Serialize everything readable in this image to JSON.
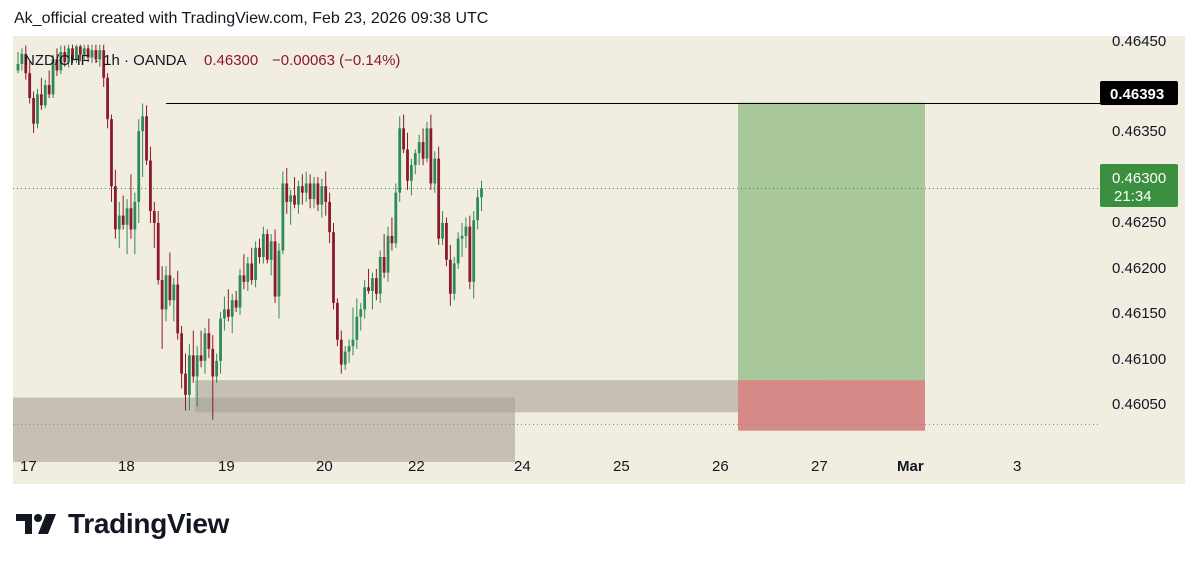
{
  "header": {
    "caption": "Ak_official created with TradingView.com, Feb 23, 2026 09:38 UTC"
  },
  "legend": {
    "symbol": "NZD/CHF · 1h · OANDA",
    "price": "0.46300",
    "change": "−0.00063 (−0.14%)"
  },
  "price_axis": {
    "labels": [
      "0.46450",
      "0.46350",
      "0.46250",
      "0.46200",
      "0.46150",
      "0.46100",
      "0.46050"
    ]
  },
  "price_tags": {
    "level": "0.46393",
    "last_price": "0.46300",
    "countdown": "21:34"
  },
  "time_axis": {
    "labels": [
      "17",
      "18",
      "19",
      "20",
      "22",
      "24",
      "25",
      "26",
      "27",
      "Mar",
      "3"
    ]
  },
  "footer": {
    "brand": "TradingView"
  },
  "colors": {
    "background": "#f2ede1",
    "up": "#2e8b57",
    "down": "#8b1a2a",
    "zone": "#a9a397",
    "target": "#a8c79a",
    "stop": "#d58a88",
    "last_price_tag": "#3b8f3e",
    "level_tag": "#000000",
    "axis_text": "#131722"
  },
  "chart_data": {
    "type": "candlestick",
    "symbol": "NZD/CHF",
    "interval": "1h",
    "exchange": "OANDA",
    "last_price": 0.463,
    "change": -0.00063,
    "change_percent": -0.14,
    "ylim": [
      0.46015,
      0.4646
    ],
    "horizontal_level": 0.46393,
    "price_line": 0.463,
    "support_line": 0.46043,
    "zones": [
      {
        "from": "Feb 17",
        "to": "Feb 24",
        "low": 0.46002,
        "high": 0.46072
      },
      {
        "from": "Feb 18 20:00",
        "to": "Feb 27",
        "low": 0.46056,
        "high": 0.46091
      }
    ],
    "long_position": {
      "from": "Feb 26 05:00",
      "to": "Feb 28 09:00",
      "entry": 0.46091,
      "target": 0.46393,
      "stop": 0.46036
    },
    "candles": [
      [
        0.46428,
        0.46448,
        0.46425,
        0.46435
      ],
      [
        0.46435,
        0.46452,
        0.46428,
        0.46446
      ],
      [
        0.46446,
        0.46455,
        0.46418,
        0.46425
      ],
      [
        0.46425,
        0.46438,
        0.46392,
        0.46398
      ],
      [
        0.46398,
        0.46405,
        0.4636,
        0.4637
      ],
      [
        0.4637,
        0.46408,
        0.46365,
        0.46402
      ],
      [
        0.46402,
        0.4642,
        0.46385,
        0.4639
      ],
      [
        0.4639,
        0.46418,
        0.46387,
        0.46412
      ],
      [
        0.46412,
        0.46428,
        0.46398,
        0.46402
      ],
      [
        0.46402,
        0.46445,
        0.46398,
        0.4644
      ],
      [
        0.4644,
        0.46452,
        0.46422,
        0.46428
      ],
      [
        0.46428,
        0.46455,
        0.46424,
        0.46448
      ],
      [
        0.46448,
        0.46455,
        0.46432,
        0.46437
      ],
      [
        0.46437,
        0.46456,
        0.46431,
        0.46452
      ],
      [
        0.46452,
        0.46456,
        0.46436,
        0.4644
      ],
      [
        0.4644,
        0.46456,
        0.46436,
        0.46454
      ],
      [
        0.46454,
        0.46456,
        0.46438,
        0.46445
      ],
      [
        0.46445,
        0.46456,
        0.4644,
        0.46452
      ],
      [
        0.46452,
        0.46456,
        0.46437,
        0.46442
      ],
      [
        0.46442,
        0.46456,
        0.46436,
        0.4645
      ],
      [
        0.4645,
        0.46456,
        0.46436,
        0.4644
      ],
      [
        0.4644,
        0.46456,
        0.46432,
        0.4645
      ],
      [
        0.4645,
        0.46456,
        0.4641,
        0.4642
      ],
      [
        0.4642,
        0.46425,
        0.46365,
        0.46375
      ],
      [
        0.46375,
        0.4638,
        0.46285,
        0.46302
      ],
      [
        0.46302,
        0.4632,
        0.46245,
        0.46255
      ],
      [
        0.46255,
        0.46285,
        0.46235,
        0.4627
      ],
      [
        0.4627,
        0.46292,
        0.46255,
        0.4626
      ],
      [
        0.4626,
        0.46288,
        0.46228,
        0.46278
      ],
      [
        0.46278,
        0.46315,
        0.46245,
        0.46255
      ],
      [
        0.46255,
        0.46295,
        0.46228,
        0.46285
      ],
      [
        0.46285,
        0.46375,
        0.46262,
        0.46362
      ],
      [
        0.46362,
        0.46392,
        0.46312,
        0.46378
      ],
      [
        0.46378,
        0.4639,
        0.46325,
        0.4633
      ],
      [
        0.4633,
        0.46345,
        0.46262,
        0.46275
      ],
      [
        0.46275,
        0.46285,
        0.46235,
        0.46262
      ],
      [
        0.46262,
        0.46275,
        0.46195,
        0.462
      ],
      [
        0.462,
        0.46215,
        0.46125,
        0.46168
      ],
      [
        0.46168,
        0.46215,
        0.46155,
        0.46205
      ],
      [
        0.46205,
        0.4623,
        0.46172,
        0.46178
      ],
      [
        0.46178,
        0.46202,
        0.46155,
        0.46195
      ],
      [
        0.46195,
        0.4621,
        0.46135,
        0.46142
      ],
      [
        0.46142,
        0.4615,
        0.46082,
        0.46098
      ],
      [
        0.46098,
        0.4612,
        0.46058,
        0.46075
      ],
      [
        0.46075,
        0.4613,
        0.46058,
        0.46118
      ],
      [
        0.46118,
        0.46145,
        0.46088,
        0.46095
      ],
      [
        0.46095,
        0.46128,
        0.46062,
        0.46118
      ],
      [
        0.46118,
        0.46145,
        0.46105,
        0.46112
      ],
      [
        0.46112,
        0.46148,
        0.46098,
        0.46142
      ],
      [
        0.46142,
        0.46158,
        0.46115,
        0.46125
      ],
      [
        0.46125,
        0.4614,
        0.46048,
        0.46095
      ],
      [
        0.46095,
        0.4612,
        0.46088,
        0.46112
      ],
      [
        0.46112,
        0.46165,
        0.46098,
        0.46158
      ],
      [
        0.46158,
        0.46182,
        0.46145,
        0.46168
      ],
      [
        0.46168,
        0.4619,
        0.46155,
        0.4616
      ],
      [
        0.4616,
        0.46185,
        0.46142,
        0.46178
      ],
      [
        0.46178,
        0.46188,
        0.46165,
        0.4617
      ],
      [
        0.4617,
        0.46212,
        0.46162,
        0.46205
      ],
      [
        0.46205,
        0.46228,
        0.4619,
        0.46198
      ],
      [
        0.46198,
        0.46225,
        0.46188,
        0.46218
      ],
      [
        0.46218,
        0.46235,
        0.46195,
        0.462
      ],
      [
        0.462,
        0.46242,
        0.46192,
        0.46235
      ],
      [
        0.46235,
        0.46245,
        0.46218,
        0.46225
      ],
      [
        0.46225,
        0.46258,
        0.46218,
        0.4625
      ],
      [
        0.4625,
        0.46255,
        0.46218,
        0.46222
      ],
      [
        0.46222,
        0.4625,
        0.46205,
        0.46242
      ],
      [
        0.46242,
        0.46255,
        0.46175,
        0.46182
      ],
      [
        0.46182,
        0.4624,
        0.46158,
        0.46232
      ],
      [
        0.46232,
        0.46318,
        0.46228,
        0.46305
      ],
      [
        0.46305,
        0.46322,
        0.46272,
        0.46285
      ],
      [
        0.46285,
        0.46298,
        0.4626,
        0.46292
      ],
      [
        0.46292,
        0.46312,
        0.46278,
        0.46282
      ],
      [
        0.46282,
        0.46308,
        0.46272,
        0.46302
      ],
      [
        0.46302,
        0.46315,
        0.46282,
        0.46295
      ],
      [
        0.46295,
        0.46318,
        0.46285,
        0.46305
      ],
      [
        0.46305,
        0.46315,
        0.46278,
        0.46288
      ],
      [
        0.46288,
        0.46312,
        0.46278,
        0.46305
      ],
      [
        0.46305,
        0.46312,
        0.46275,
        0.46282
      ],
      [
        0.46282,
        0.4631,
        0.46268,
        0.46302
      ],
      [
        0.46302,
        0.46318,
        0.4627,
        0.46285
      ],
      [
        0.46285,
        0.46295,
        0.4624,
        0.46252
      ],
      [
        0.46252,
        0.46262,
        0.46168,
        0.46175
      ],
      [
        0.46175,
        0.4618,
        0.46128,
        0.46135
      ],
      [
        0.46135,
        0.46145,
        0.46098,
        0.46108
      ],
      [
        0.46108,
        0.46128,
        0.46102,
        0.46122
      ],
      [
        0.46122,
        0.46135,
        0.4611,
        0.46128
      ],
      [
        0.46128,
        0.4617,
        0.46118,
        0.46135
      ],
      [
        0.46135,
        0.4618,
        0.46125,
        0.4616
      ],
      [
        0.4616,
        0.46175,
        0.46145,
        0.46168
      ],
      [
        0.46168,
        0.462,
        0.46158,
        0.46192
      ],
      [
        0.46192,
        0.46212,
        0.46185,
        0.46188
      ],
      [
        0.46188,
        0.46208,
        0.46168,
        0.46202
      ],
      [
        0.46202,
        0.46212,
        0.46178,
        0.46185
      ],
      [
        0.46185,
        0.46232,
        0.46175,
        0.46225
      ],
      [
        0.46225,
        0.4625,
        0.46202,
        0.46208
      ],
      [
        0.46208,
        0.46258,
        0.46198,
        0.46248
      ],
      [
        0.46248,
        0.46268,
        0.46232,
        0.4624
      ],
      [
        0.4624,
        0.46305,
        0.46235,
        0.46295
      ],
      [
        0.46295,
        0.46378,
        0.46285,
        0.46365
      ],
      [
        0.46365,
        0.4638,
        0.46338,
        0.46342
      ],
      [
        0.46342,
        0.4636,
        0.46298,
        0.46308
      ],
      [
        0.46308,
        0.46332,
        0.46292,
        0.46325
      ],
      [
        0.46325,
        0.46342,
        0.46315,
        0.46338
      ],
      [
        0.46338,
        0.46358,
        0.46325,
        0.4635
      ],
      [
        0.4635,
        0.46365,
        0.46325,
        0.46332
      ],
      [
        0.46332,
        0.46372,
        0.46328,
        0.46365
      ],
      [
        0.46365,
        0.4638,
        0.46298,
        0.46305
      ],
      [
        0.46305,
        0.4634,
        0.46295,
        0.46332
      ],
      [
        0.46332,
        0.46345,
        0.46238,
        0.46245
      ],
      [
        0.46245,
        0.46275,
        0.46238,
        0.46262
      ],
      [
        0.46262,
        0.46268,
        0.46215,
        0.46222
      ],
      [
        0.46222,
        0.46238,
        0.46172,
        0.46185
      ],
      [
        0.46185,
        0.46225,
        0.46178,
        0.46218
      ],
      [
        0.46218,
        0.46252,
        0.46212,
        0.46245
      ],
      [
        0.46245,
        0.46262,
        0.46225,
        0.46248
      ],
      [
        0.46248,
        0.46268,
        0.46235,
        0.46258
      ],
      [
        0.46258,
        0.4627,
        0.4619,
        0.46198
      ],
      [
        0.46198,
        0.46275,
        0.4618,
        0.46265
      ],
      [
        0.46265,
        0.46298,
        0.46255,
        0.4629
      ],
      [
        0.4629,
        0.46308,
        0.46275,
        0.463
      ]
    ]
  }
}
